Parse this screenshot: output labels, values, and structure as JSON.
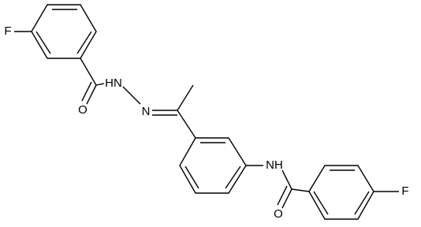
{
  "atoms": {
    "fluorine_1": "F",
    "oxygen_1": "O",
    "hydrazide_nh": "HN",
    "imine_n": "N",
    "amide_nh": "NH",
    "oxygen_2": "O",
    "fluorine_2": "F"
  }
}
